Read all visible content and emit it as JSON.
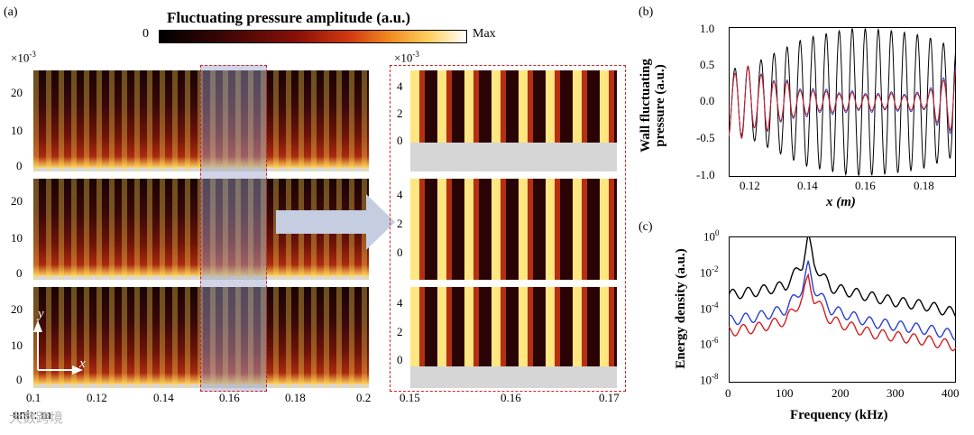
{
  "panel_a": {
    "label": "(a)",
    "colorbar": {
      "title": "Fluctuating pressure amplitude (a.u.)",
      "min": "0",
      "max": "Max"
    },
    "left_exponent": "×10",
    "left_exponent_power": "-3",
    "right_exponent": "×10",
    "right_exponent_power": "-3",
    "left_y_ticks": [
      "20",
      "10",
      "0"
    ],
    "right_y_ticks": [
      "4",
      "2",
      "0"
    ],
    "left_x_ticks": [
      "0.1",
      "0.12",
      "0.14",
      "0.16",
      "0.18",
      "0.2"
    ],
    "right_x_ticks": [
      "0.15",
      "0.16",
      "0.17"
    ],
    "axis_y": "y",
    "axis_x": "x",
    "unit": "unit: m"
  },
  "panel_b": {
    "label": "(b)",
    "ylabel_line1": "Wall fluctuating",
    "ylabel_line2": "pressure (a.u.)",
    "xlabel": "x (m)",
    "y_ticks": [
      "1.0",
      "0.5",
      "0.0",
      "-0.5",
      "-1.0"
    ],
    "x_ticks": [
      "0.12",
      "0.14",
      "0.16",
      "0.18"
    ]
  },
  "panel_c": {
    "label": "(c)",
    "ylabel": "Energy density (a.u.)",
    "xlabel": "Frequency (kHz)",
    "y_ticks": [
      "10",
      "10",
      "10",
      "10",
      "10"
    ],
    "y_tick_powers": [
      "0",
      "-2",
      "-4",
      "-6",
      "-8"
    ],
    "x_ticks": [
      "0",
      "100",
      "200",
      "300",
      "400"
    ]
  },
  "watermark": "大数跨境",
  "chart_data": [
    {
      "type": "line",
      "panel": "b",
      "xlabel": "x (m)",
      "ylabel": "Wall fluctuating pressure (a.u.)",
      "xlim": [
        0.115,
        0.19
      ],
      "ylim": [
        -1.0,
        1.0
      ],
      "series": [
        {
          "color": "#000000",
          "x": [
            0.12,
            0.14,
            0.155,
            0.16,
            0.17,
            0.18,
            0.188
          ],
          "amplitude": [
            0.45,
            0.85,
            0.98,
            0.98,
            0.95,
            0.88,
            0.75
          ]
        },
        {
          "color": "#2a3fd0",
          "x": [
            0.12,
            0.14,
            0.16,
            0.18,
            0.188
          ],
          "amplitude": [
            0.45,
            0.18,
            0.12,
            0.12,
            0.45
          ]
        },
        {
          "color": "#d02020",
          "x": [
            0.12,
            0.14,
            0.16,
            0.18,
            0.188
          ],
          "amplitude": [
            0.45,
            0.15,
            0.1,
            0.1,
            0.4
          ]
        }
      ]
    },
    {
      "type": "line",
      "panel": "c",
      "xlabel": "Frequency (kHz)",
      "ylabel": "Energy density (a.u.)",
      "xlim": [
        0,
        400
      ],
      "ylim_log10": [
        -8,
        0
      ],
      "series": [
        {
          "color": "#000000",
          "x": [
            0,
            50,
            100,
            130,
            140,
            150,
            180,
            250,
            300,
            350,
            400
          ],
          "log10_y": [
            -3.2,
            -3.0,
            -2.7,
            -1.5,
            0.0,
            -1.5,
            -2.8,
            -3.3,
            -3.6,
            -3.8,
            -4.2
          ]
        },
        {
          "color": "#2a3fd0",
          "x": [
            0,
            50,
            100,
            130,
            140,
            150,
            180,
            250,
            300,
            350,
            400
          ],
          "log10_y": [
            -4.6,
            -4.4,
            -4.0,
            -2.8,
            -1.6,
            -2.8,
            -4.0,
            -4.7,
            -4.9,
            -5.1,
            -5.4
          ]
        },
        {
          "color": "#d02020",
          "x": [
            0,
            50,
            100,
            130,
            140,
            150,
            180,
            250,
            300,
            350,
            400
          ],
          "log10_y": [
            -5.2,
            -5.0,
            -4.6,
            -3.4,
            -2.2,
            -3.4,
            -4.6,
            -5.3,
            -5.5,
            -5.7,
            -6.0
          ]
        }
      ]
    }
  ]
}
